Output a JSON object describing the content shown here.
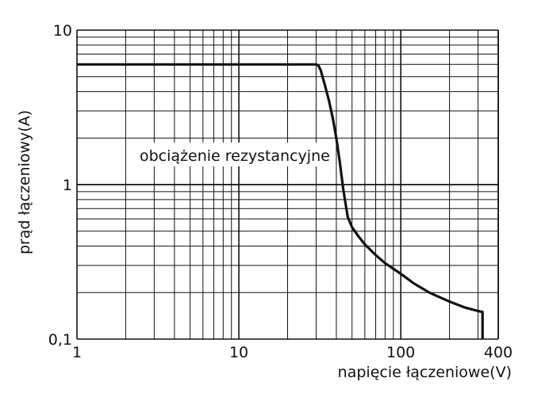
{
  "chart_data": {
    "type": "line",
    "xlabel": "napięcie łączeniowe(V)",
    "ylabel": "prąd łączeniowy(A)",
    "annotation": "obciążenie rezystancyjne",
    "x_scale": "log",
    "y_scale": "log",
    "xlim": [
      1,
      400
    ],
    "ylim": [
      0.1,
      10
    ],
    "x_ticks": [
      {
        "value": 1,
        "label": "1"
      },
      {
        "value": 10,
        "label": "10"
      },
      {
        "value": 100,
        "label": "100"
      },
      {
        "value": 400,
        "label": "400"
      }
    ],
    "y_ticks": [
      {
        "value": 10,
        "label": "10"
      },
      {
        "value": 1,
        "label": "1"
      },
      {
        "value": 0.1,
        "label": "0,1"
      }
    ],
    "grid": true,
    "series": [
      {
        "x": [
          1,
          30,
          31,
          32,
          34,
          36,
          38,
          40,
          42,
          44,
          47,
          50,
          55,
          60,
          70,
          80,
          100,
          120,
          150,
          200,
          250,
          300,
          320,
          320
        ],
        "y": [
          6,
          6,
          5.9,
          5.5,
          4.4,
          3.5,
          2.7,
          2.0,
          1.4,
          0.95,
          0.62,
          0.53,
          0.46,
          0.41,
          0.35,
          0.31,
          0.265,
          0.23,
          0.2,
          0.175,
          0.16,
          0.152,
          0.15,
          0.1
        ]
      }
    ],
    "line_color": "#111111",
    "grid_color": "#111111"
  }
}
